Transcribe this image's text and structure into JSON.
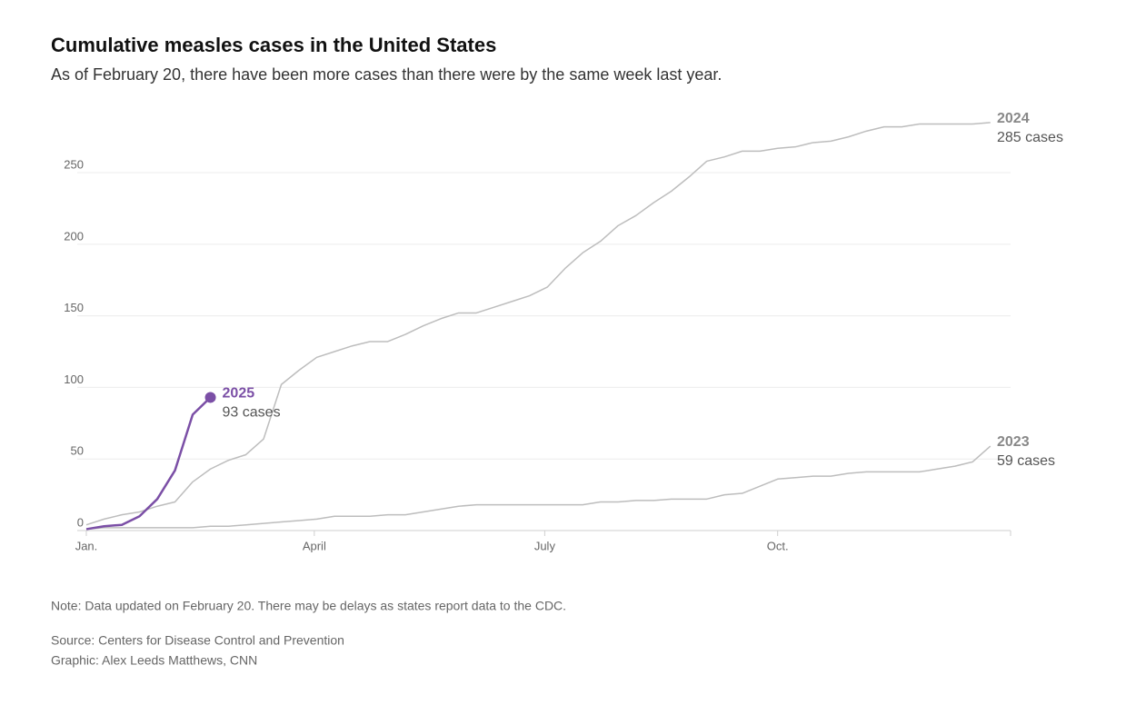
{
  "chart_data": {
    "type": "line",
    "title": "Cumulative measles cases in the United States",
    "subtitle": "As of February 20, there have been more cases than there were by the same week last year.",
    "note": "Note: Data updated on February 20. There may be delays as states report data to the CDC.",
    "source": "Source: Centers for Disease Control and Prevention",
    "credit": "Graphic: Alex Leeds Matthews, CNN",
    "xlim": [
      0,
      52.14
    ],
    "xticks": [
      {
        "value": 0,
        "label": "Jan."
      },
      {
        "value": 12.86,
        "label": "April"
      },
      {
        "value": 25.86,
        "label": "July"
      },
      {
        "value": 39,
        "label": "Oct."
      }
    ],
    "ylim": [
      0,
      290
    ],
    "yticks": [
      0,
      50,
      100,
      150,
      200,
      250
    ],
    "grid": true,
    "series": [
      {
        "name": "2024",
        "end_label": "285 cases",
        "color": "#bdbdbd",
        "x": [
          0,
          1,
          2,
          3,
          4,
          5,
          6,
          7,
          8,
          9,
          10,
          11,
          12,
          13,
          14,
          15,
          16,
          17,
          18,
          19,
          20,
          21,
          22,
          23,
          24,
          25,
          26,
          27,
          28,
          29,
          30,
          31,
          32,
          33,
          34,
          35,
          36,
          37,
          38,
          39,
          40,
          41,
          42,
          43,
          44,
          45,
          46,
          47,
          48,
          49,
          50,
          51
        ],
        "values": [
          4,
          8,
          11,
          13,
          17,
          20,
          34,
          43,
          49,
          53,
          64,
          102,
          112,
          121,
          125,
          129,
          132,
          132,
          137,
          143,
          148,
          152,
          152,
          156,
          160,
          164,
          170,
          183,
          194,
          202,
          213,
          220,
          229,
          237,
          247,
          258,
          261,
          265,
          265,
          267,
          268,
          271,
          272,
          275,
          279,
          282,
          282,
          284,
          284,
          284,
          284,
          285
        ]
      },
      {
        "name": "2023",
        "end_label": "59 cases",
        "color": "#bdbdbd",
        "x": [
          0,
          1,
          2,
          3,
          4,
          5,
          6,
          7,
          8,
          9,
          10,
          11,
          12,
          13,
          14,
          15,
          16,
          17,
          18,
          19,
          20,
          21,
          22,
          23,
          24,
          25,
          26,
          27,
          28,
          29,
          30,
          31,
          32,
          33,
          34,
          35,
          36,
          37,
          38,
          39,
          40,
          41,
          42,
          43,
          44,
          45,
          46,
          47,
          48,
          49,
          50,
          51
        ],
        "values": [
          1,
          2,
          2,
          2,
          2,
          2,
          2,
          3,
          3,
          4,
          5,
          6,
          7,
          8,
          10,
          10,
          10,
          11,
          11,
          13,
          15,
          17,
          18,
          18,
          18,
          18,
          18,
          18,
          18,
          20,
          20,
          21,
          21,
          22,
          22,
          22,
          25,
          26,
          31,
          36,
          37,
          38,
          38,
          40,
          41,
          41,
          41,
          41,
          43,
          45,
          48,
          59
        ]
      },
      {
        "name": "2025",
        "end_label": "93 cases",
        "color": "#7b4fa6",
        "x": [
          0,
          1,
          2,
          3,
          4,
          5,
          6,
          7
        ],
        "values": [
          1,
          3,
          4,
          10,
          22,
          42,
          81,
          93
        ]
      }
    ]
  }
}
